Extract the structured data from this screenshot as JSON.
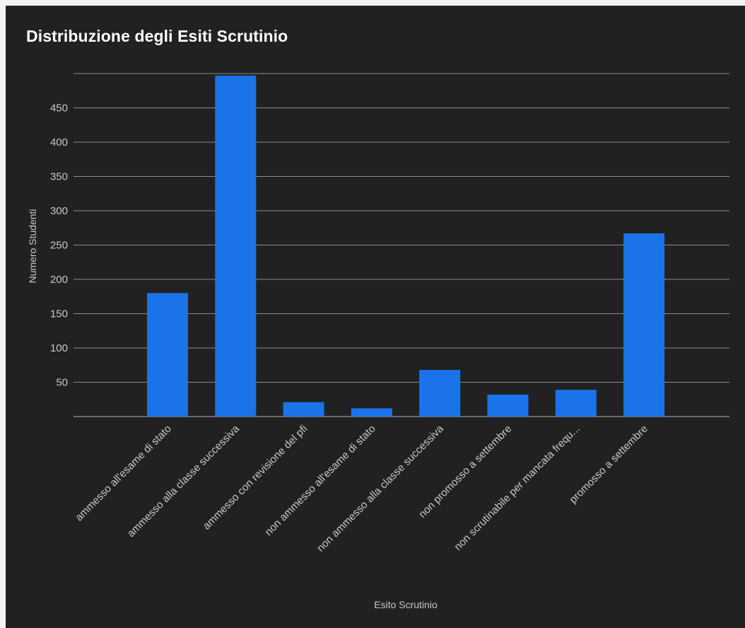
{
  "chart_data": {
    "type": "bar",
    "title": "Distribuzione degli Esiti Scrutinio",
    "xlabel": "Esito Scrutinio",
    "ylabel": "Numero Studenti",
    "categories": [
      "ammesso all'esame di stato",
      "ammesso alla classe successiva",
      "ammesso con revisione del pfi",
      "non ammesso all'esame di stato",
      "non ammesso alla classe successiva",
      "non promosso a settembre",
      "non scrutinabile per mancata frequ...",
      "promosso a settembre"
    ],
    "values": [
      180,
      497,
      21,
      12,
      68,
      32,
      39,
      267
    ],
    "y_ticks": [
      "50",
      "100",
      "150",
      "200",
      "250",
      "300",
      "350",
      "400",
      "450"
    ],
    "ylim": [
      0,
      500
    ],
    "grid": true,
    "legend": "none",
    "colors": {
      "bar": "#1a73e8",
      "background": "#212121",
      "gridline": "#8c8c8c",
      "text": "#c8c8c8",
      "title": "#ffffff"
    }
  }
}
